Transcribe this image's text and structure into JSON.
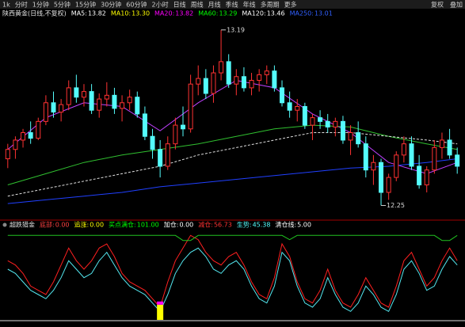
{
  "toolbar": {
    "left": [
      "1k",
      "分时",
      "1分钟",
      "5分钟",
      "15分钟",
      "30分钟",
      "60分钟",
      "2小时",
      "日线",
      "周线",
      "月线",
      "季线",
      "年线",
      "多周期",
      "更多"
    ],
    "right": [
      "复权",
      "叠加"
    ]
  },
  "chart_data": [
    {
      "type": "candlestick",
      "title": "陕西黄金(日线,不复权)",
      "up_color": "#ff3232",
      "down_color": "#54fcfc",
      "ylim": [
        12.18,
        13.24
      ],
      "candles": [
        [
          12.5,
          12.58,
          12.45,
          12.55
        ],
        [
          12.55,
          12.62,
          12.5,
          12.6
        ],
        [
          12.6,
          12.66,
          12.56,
          12.64
        ],
        [
          12.64,
          12.7,
          12.58,
          12.61
        ],
        [
          12.61,
          12.72,
          12.6,
          12.7
        ],
        [
          12.7,
          12.84,
          12.68,
          12.8
        ],
        [
          12.8,
          12.86,
          12.72,
          12.75
        ],
        [
          12.75,
          12.82,
          12.7,
          12.79
        ],
        [
          12.79,
          12.92,
          12.76,
          12.88
        ],
        [
          12.88,
          12.95,
          12.8,
          12.83
        ],
        [
          12.83,
          12.9,
          12.78,
          12.86
        ],
        [
          12.86,
          12.9,
          12.74,
          12.76
        ],
        [
          12.76,
          12.85,
          12.72,
          12.82
        ],
        [
          12.82,
          12.91,
          12.78,
          12.84
        ],
        [
          12.84,
          12.88,
          12.74,
          12.77
        ],
        [
          12.77,
          12.84,
          12.7,
          12.8
        ],
        [
          12.8,
          12.87,
          12.76,
          12.83
        ],
        [
          12.83,
          12.86,
          12.72,
          12.74
        ],
        [
          12.74,
          12.78,
          12.6,
          12.62
        ],
        [
          12.62,
          12.66,
          12.5,
          12.55
        ],
        [
          12.55,
          12.6,
          12.4,
          12.46
        ],
        [
          12.46,
          12.62,
          12.44,
          12.58
        ],
        [
          12.58,
          12.72,
          12.55,
          12.68
        ],
        [
          12.68,
          12.78,
          12.62,
          12.66
        ],
        [
          12.66,
          12.95,
          12.64,
          12.9
        ],
        [
          12.9,
          13.0,
          12.84,
          12.93
        ],
        [
          12.93,
          12.98,
          12.82,
          12.85
        ],
        [
          12.85,
          13.0,
          12.8,
          12.96
        ],
        [
          12.96,
          13.19,
          12.92,
          13.02
        ],
        [
          13.02,
          13.06,
          12.88,
          12.9
        ],
        [
          12.9,
          12.98,
          12.84,
          12.94
        ],
        [
          12.94,
          12.99,
          12.86,
          12.88
        ],
        [
          12.88,
          12.96,
          12.84,
          12.92
        ],
        [
          12.92,
          12.98,
          12.86,
          12.95
        ],
        [
          12.95,
          13.0,
          12.9,
          12.97
        ],
        [
          12.97,
          13.0,
          12.86,
          12.88
        ],
        [
          12.88,
          12.92,
          12.78,
          12.8
        ],
        [
          12.8,
          12.86,
          12.72,
          12.76
        ],
        [
          12.76,
          12.82,
          12.7,
          12.78
        ],
        [
          12.78,
          12.8,
          12.66,
          12.68
        ],
        [
          12.68,
          12.74,
          12.6,
          12.72
        ],
        [
          12.72,
          12.76,
          12.66,
          12.7
        ],
        [
          12.7,
          12.74,
          12.64,
          12.67
        ],
        [
          12.67,
          12.72,
          12.62,
          12.7
        ],
        [
          12.7,
          12.73,
          12.58,
          12.6
        ],
        [
          12.6,
          12.68,
          12.52,
          12.64
        ],
        [
          12.64,
          12.7,
          12.56,
          12.58
        ],
        [
          12.58,
          12.62,
          12.4,
          12.44
        ],
        [
          12.44,
          12.52,
          12.36,
          12.48
        ],
        [
          12.48,
          12.5,
          12.25,
          12.32
        ],
        [
          12.32,
          12.42,
          12.28,
          12.4
        ],
        [
          12.4,
          12.54,
          12.38,
          12.52
        ],
        [
          12.52,
          12.62,
          12.48,
          12.58
        ],
        [
          12.58,
          12.62,
          12.44,
          12.46
        ],
        [
          12.46,
          12.52,
          12.34,
          12.36
        ],
        [
          12.36,
          12.46,
          12.32,
          12.44
        ],
        [
          12.44,
          12.6,
          12.42,
          12.56
        ],
        [
          12.56,
          12.64,
          12.5,
          12.6
        ],
        [
          12.6,
          12.66,
          12.5,
          12.52
        ],
        [
          12.52,
          12.56,
          12.42,
          12.46
        ]
      ],
      "high_label_index": 28,
      "low_label_index": 49,
      "legend": [
        {
          "name": "MA5:",
          "value": 13.82,
          "value_label": "13.82",
          "color": "#ffffff"
        },
        {
          "name": "MA10:",
          "value": 13.3,
          "value_label": "13.30",
          "color": "#ffff00"
        },
        {
          "name": "MA20:",
          "value": 13.82,
          "value_label": "13.82",
          "color": "#ff00ff"
        },
        {
          "name": "MA60:",
          "value": 13.29,
          "value_label": "13.29",
          "color": "#00ff00"
        },
        {
          "name": "MA120:",
          "value": 13.46,
          "value_label": "13.46",
          "color": "#ffffff"
        },
        {
          "name": "MA250:",
          "value": 13.01,
          "value_label": "13.01",
          "color": "#3060ff"
        }
      ],
      "lines": [
        {
          "color": "#c040ff",
          "dash": false,
          "x": [
            0,
            5,
            10,
            15,
            20,
            25,
            30,
            35,
            40,
            45,
            50,
            55,
            59
          ],
          "values": [
            12.55,
            12.72,
            12.8,
            12.78,
            12.65,
            12.8,
            12.92,
            12.88,
            12.74,
            12.64,
            12.48,
            12.42,
            12.48
          ]
        },
        {
          "color": "#30c030",
          "dash": false,
          "x": [
            0,
            5,
            10,
            15,
            20,
            25,
            30,
            35,
            40,
            45,
            50,
            55,
            59
          ],
          "values": [
            12.36,
            12.42,
            12.48,
            12.52,
            12.55,
            12.58,
            12.62,
            12.66,
            12.68,
            12.67,
            12.62,
            12.58,
            12.55
          ]
        },
        {
          "color": "#e0e0e0",
          "dash": true,
          "x": [
            0,
            5,
            10,
            15,
            20,
            25,
            30,
            35,
            40,
            45,
            50,
            55,
            59
          ],
          "values": [
            12.3,
            12.34,
            12.38,
            12.42,
            12.46,
            12.52,
            12.56,
            12.6,
            12.64,
            12.64,
            12.62,
            12.6,
            12.58
          ]
        },
        {
          "color": "#2040ff",
          "dash": false,
          "x": [
            0,
            5,
            10,
            15,
            20,
            25,
            30,
            35,
            40,
            45,
            50,
            55,
            59
          ],
          "values": [
            12.26,
            12.28,
            12.3,
            12.32,
            12.35,
            12.37,
            12.39,
            12.41,
            12.43,
            12.45,
            12.46,
            12.48,
            12.5
          ]
        }
      ]
    },
    {
      "type": "line",
      "title": "超跌猎金",
      "ylim": [
        0,
        105
      ],
      "legend": [
        {
          "name": "底部:",
          "value": 0,
          "value_label": "0.00",
          "color": "#ff4040"
        },
        {
          "name": "追涨:",
          "value": 0,
          "value_label": "0.00",
          "color": "#ffff00"
        },
        {
          "name": "买点满仓:",
          "value": 101,
          "value_label": "101.00",
          "color": "#00ff00"
        },
        {
          "name": "加仓:",
          "value": 0,
          "value_label": "0.00",
          "color": "#ffffff"
        },
        {
          "name": "减仓:",
          "value": 56.73,
          "value_label": "56.73",
          "color": "#ff3232"
        },
        {
          "name": "生势:",
          "value": 45.38,
          "value_label": "45.38",
          "color": "#54fcfc"
        },
        {
          "name": "清仓线:",
          "value": 5,
          "value_label": "5.00",
          "color": "#ffffff"
        }
      ],
      "lines": [
        {
          "color": "#54e8f0",
          "x": [
            0,
            1,
            2,
            3,
            4,
            5,
            6,
            7,
            8,
            9,
            10,
            11,
            12,
            13,
            14,
            15,
            16,
            17,
            18,
            19,
            20,
            21,
            22,
            23,
            24,
            25,
            26,
            27,
            28,
            29,
            30,
            31,
            32,
            33,
            34,
            35,
            36,
            37,
            38,
            39,
            40,
            41,
            42,
            43,
            44,
            45,
            46,
            47,
            48,
            49,
            50,
            51,
            52,
            53,
            54,
            55,
            56,
            57,
            58,
            59
          ],
          "values": [
            60,
            55,
            45,
            35,
            30,
            25,
            35,
            50,
            70,
            60,
            50,
            55,
            70,
            80,
            65,
            50,
            40,
            35,
            30,
            20,
            10,
            30,
            55,
            70,
            80,
            85,
            75,
            60,
            55,
            65,
            70,
            60,
            40,
            25,
            20,
            40,
            80,
            70,
            40,
            20,
            15,
            25,
            50,
            30,
            15,
            10,
            20,
            40,
            30,
            15,
            10,
            30,
            60,
            70,
            55,
            35,
            40,
            60,
            75,
            65
          ]
        },
        {
          "color": "#ff2020",
          "x": [
            0,
            1,
            2,
            3,
            4,
            5,
            6,
            7,
            8,
            9,
            10,
            11,
            12,
            13,
            14,
            15,
            16,
            17,
            18,
            19,
            20,
            21,
            22,
            23,
            24,
            25,
            26,
            27,
            28,
            29,
            30,
            31,
            32,
            33,
            34,
            35,
            36,
            37,
            38,
            39,
            40,
            41,
            42,
            43,
            44,
            45,
            46,
            47,
            48,
            49,
            50,
            51,
            52,
            53,
            54,
            55,
            56,
            57,
            58,
            59
          ],
          "values": [
            70,
            65,
            55,
            40,
            35,
            30,
            45,
            65,
            85,
            70,
            60,
            70,
            85,
            90,
            75,
            55,
            45,
            40,
            35,
            25,
            15,
            45,
            70,
            85,
            100,
            95,
            80,
            70,
            65,
            75,
            80,
            65,
            45,
            30,
            25,
            50,
            90,
            75,
            45,
            25,
            20,
            35,
            60,
            35,
            20,
            15,
            30,
            50,
            35,
            20,
            15,
            40,
            70,
            80,
            60,
            40,
            50,
            70,
            85,
            70
          ]
        },
        {
          "color": "#20c020",
          "x": [
            0,
            22,
            23,
            24,
            25,
            36,
            37,
            38,
            56,
            57,
            58,
            59
          ],
          "values": [
            100,
            100,
            94,
            94,
            100,
            100,
            95,
            100,
            100,
            94,
            94,
            100
          ]
        }
      ],
      "signal": {
        "x": 20,
        "value": 18,
        "color": "#ffff00",
        "top_color": "#ff00ff"
      }
    }
  ]
}
